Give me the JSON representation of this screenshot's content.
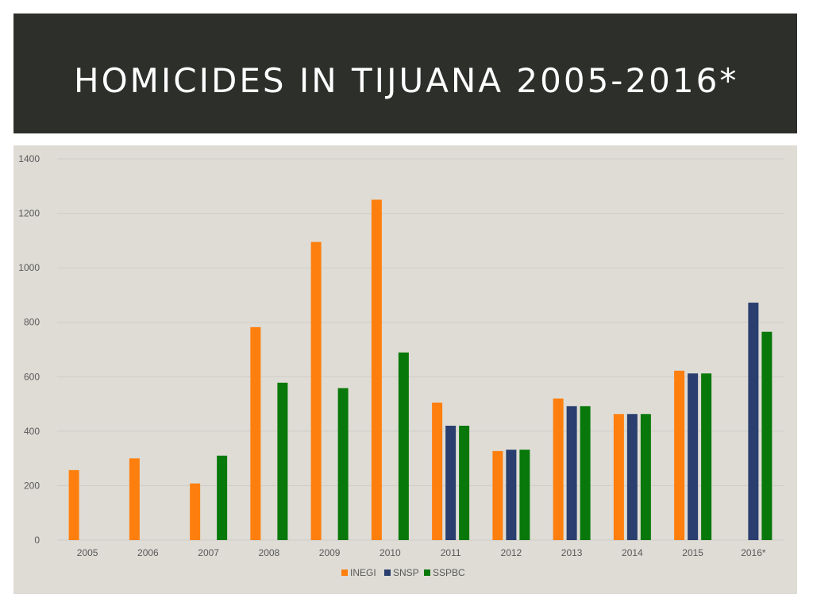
{
  "slide": {
    "title": "HOMICIDES IN TIJUANA 2005-2016*"
  },
  "chart_data": {
    "type": "bar",
    "title": "",
    "xlabel": "",
    "ylabel": "",
    "ylim": [
      0,
      1400
    ],
    "yticks": [
      0,
      200,
      400,
      600,
      800,
      1000,
      1200,
      1400
    ],
    "grid": true,
    "legend_position": "bottom",
    "categories": [
      "2005",
      "2006",
      "2007",
      "2008",
      "2009",
      "2010",
      "2011",
      "2012",
      "2013",
      "2014",
      "2015",
      "2016*"
    ],
    "series": [
      {
        "name": "INEGI",
        "color": "#ff7f0e",
        "values": [
          257,
          300,
          208,
          782,
          1095,
          1250,
          505,
          327,
          520,
          463,
          622,
          null
        ]
      },
      {
        "name": "SNSP",
        "color": "#2a3f6f",
        "values": [
          null,
          null,
          null,
          null,
          null,
          null,
          420,
          332,
          492,
          463,
          612,
          872
        ]
      },
      {
        "name": "SSPBC",
        "color": "#08780a",
        "values": [
          null,
          null,
          310,
          578,
          558,
          689,
          420,
          332,
          492,
          463,
          612,
          765
        ]
      }
    ]
  }
}
